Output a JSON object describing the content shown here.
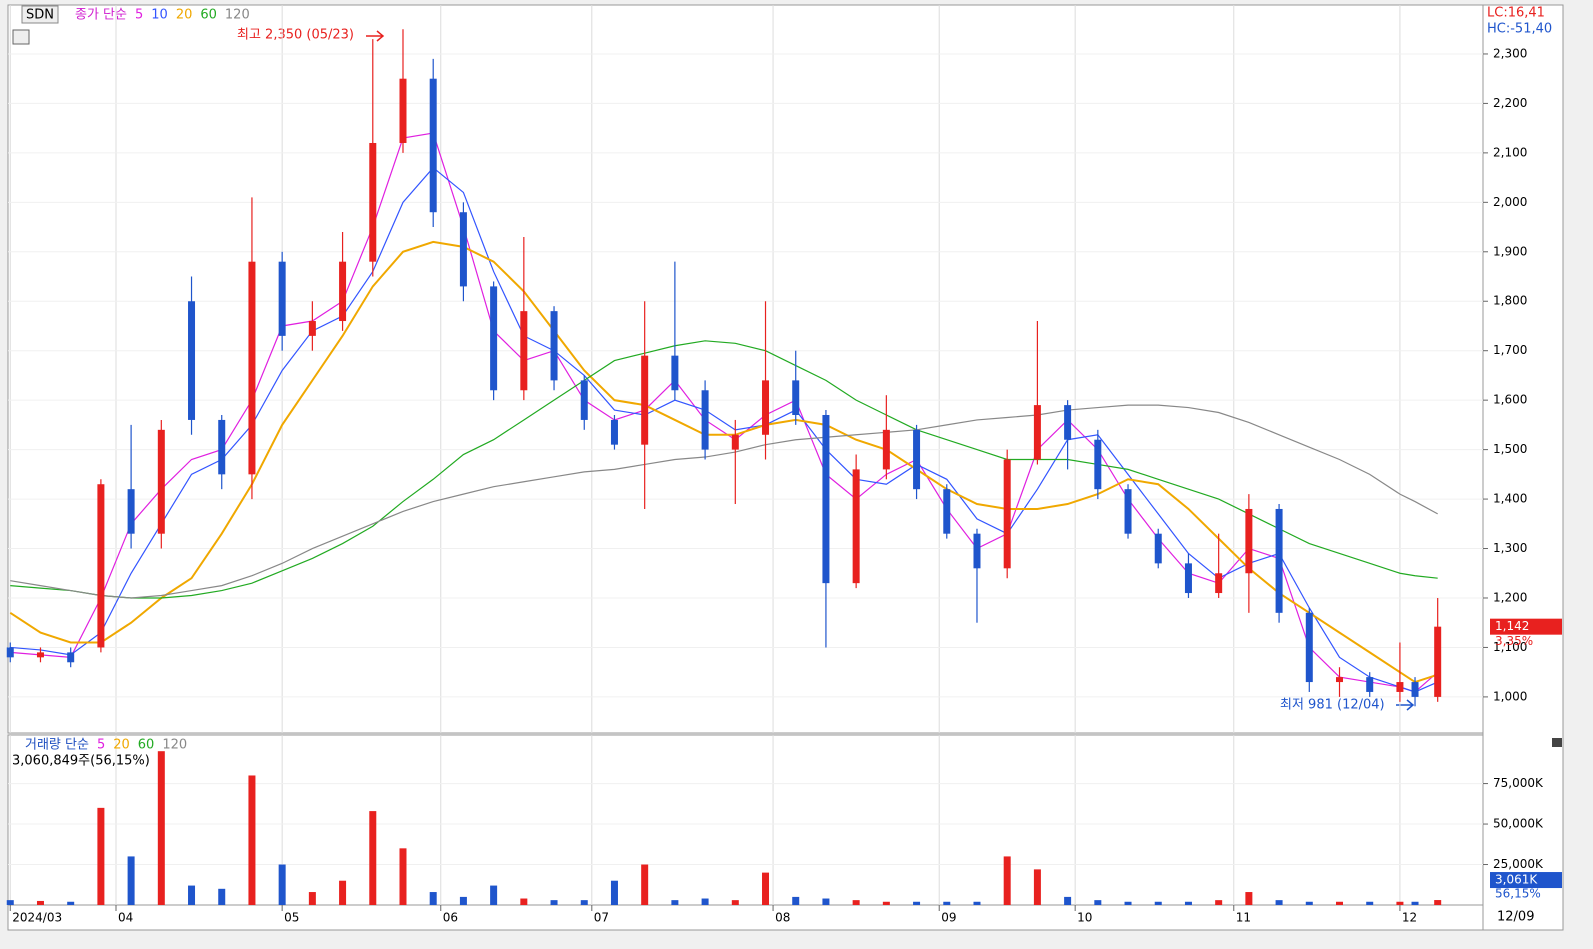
{
  "header": {
    "symbol": "SDN",
    "price_legend": "종가 단순",
    "volume_legend": "거래량 단순",
    "lc": "LC:16,41",
    "hc": "HC:-51,40",
    "x_end_label": "12/09",
    "high_note": "최고 2,350 (05/23)",
    "low_note": "최저 981 (12/04)",
    "last_change": "3,35%",
    "volume_total": "3,060,849주(56,15%)",
    "volume_ratio": "56,15%"
  },
  "chart_data": [
    {
      "type": "candlestick",
      "up_color": "#e8211f",
      "down_color": "#1f55cc",
      "grid": true,
      "x": [
        0,
        4,
        8,
        12,
        16,
        20,
        24,
        28,
        32,
        36,
        40,
        44,
        48,
        52,
        56,
        60,
        64,
        68,
        72,
        76,
        80,
        84,
        88,
        92,
        96,
        100,
        104,
        108,
        112,
        116,
        120,
        124,
        128,
        132,
        136,
        140,
        144,
        148,
        152,
        156,
        160,
        164,
        168,
        172,
        176,
        180,
        184,
        186,
        189
      ],
      "open": [
        1100,
        1080,
        1090,
        1100,
        1420,
        1330,
        1800,
        1560,
        1450,
        1880,
        1730,
        1760,
        1880,
        2120,
        2250,
        1980,
        1830,
        1620,
        1780,
        1640,
        1560,
        1510,
        1690,
        1620,
        1500,
        1530,
        1640,
        1570,
        1230,
        1460,
        1540,
        1420,
        1330,
        1260,
        1480,
        1590,
        1520,
        1420,
        1330,
        1270,
        1210,
        1250,
        1380,
        1170,
        1030,
        1040,
        1010,
        1030,
        1000
      ],
      "high": [
        1110,
        1100,
        1100,
        1440,
        1550,
        1560,
        1850,
        1570,
        2010,
        1900,
        1800,
        1940,
        2330,
        2350,
        2290,
        2000,
        1840,
        1930,
        1790,
        1650,
        1570,
        1800,
        1880,
        1640,
        1560,
        1800,
        1700,
        1580,
        1490,
        1610,
        1550,
        1430,
        1340,
        1500,
        1760,
        1600,
        1540,
        1430,
        1340,
        1290,
        1330,
        1410,
        1390,
        1180,
        1060,
        1050,
        1110,
        1040,
        1200
      ],
      "low": [
        1070,
        1070,
        1060,
        1090,
        1300,
        1300,
        1530,
        1420,
        1400,
        1700,
        1700,
        1740,
        1850,
        2100,
        1950,
        1800,
        1600,
        1600,
        1620,
        1540,
        1500,
        1380,
        1600,
        1480,
        1390,
        1480,
        1550,
        1100,
        1220,
        1440,
        1400,
        1320,
        1150,
        1240,
        1470,
        1460,
        1400,
        1320,
        1260,
        1200,
        1200,
        1170,
        1150,
        1010,
        1000,
        1000,
        990,
        981,
        990
      ],
      "close": [
        1080,
        1090,
        1070,
        1430,
        1330,
        1540,
        1560,
        1450,
        1880,
        1730,
        1760,
        1880,
        2120,
        2250,
        1980,
        1830,
        1620,
        1780,
        1640,
        1560,
        1510,
        1690,
        1620,
        1500,
        1530,
        1640,
        1570,
        1230,
        1460,
        1540,
        1420,
        1330,
        1260,
        1480,
        1590,
        1520,
        1420,
        1330,
        1270,
        1210,
        1250,
        1380,
        1170,
        1030,
        1040,
        1010,
        1030,
        1000,
        1142
      ],
      "series": [
        {
          "name": "5",
          "color": "#e020e0",
          "values": [
            1090,
            1085,
            1080,
            1200,
            1350,
            1420,
            1480,
            1500,
            1600,
            1750,
            1760,
            1800,
            1950,
            2130,
            2140,
            1950,
            1740,
            1680,
            1700,
            1600,
            1560,
            1580,
            1640,
            1560,
            1520,
            1570,
            1600,
            1450,
            1400,
            1450,
            1480,
            1380,
            1300,
            1330,
            1500,
            1560,
            1500,
            1400,
            1320,
            1250,
            1230,
            1300,
            1280,
            1100,
            1040,
            1030,
            1020,
            1010,
            1050
          ]
        },
        {
          "name": "10",
          "color": "#3355ff",
          "values": [
            1100,
            1095,
            1085,
            1130,
            1250,
            1350,
            1450,
            1480,
            1550,
            1660,
            1740,
            1770,
            1860,
            2000,
            2070,
            2020,
            1860,
            1730,
            1700,
            1650,
            1580,
            1570,
            1600,
            1580,
            1540,
            1550,
            1580,
            1500,
            1440,
            1430,
            1470,
            1440,
            1360,
            1330,
            1420,
            1520,
            1530,
            1450,
            1370,
            1290,
            1240,
            1270,
            1290,
            1180,
            1080,
            1040,
            1020,
            1010,
            1030
          ]
        },
        {
          "name": "20",
          "color": "#f0a800",
          "values": [
            1170,
            1130,
            1110,
            1110,
            1150,
            1200,
            1240,
            1330,
            1430,
            1550,
            1640,
            1730,
            1830,
            1900,
            1920,
            1910,
            1880,
            1820,
            1740,
            1660,
            1600,
            1590,
            1560,
            1530,
            1530,
            1550,
            1560,
            1550,
            1520,
            1500,
            1460,
            1420,
            1390,
            1380,
            1380,
            1390,
            1410,
            1440,
            1430,
            1380,
            1320,
            1260,
            1210,
            1170,
            1130,
            1090,
            1050,
            1030,
            1045
          ]
        },
        {
          "name": "60",
          "color": "#22aa22",
          "values": [
            1225,
            1220,
            1215,
            1205,
            1200,
            1200,
            1205,
            1215,
            1230,
            1255,
            1280,
            1310,
            1345,
            1395,
            1440,
            1490,
            1520,
            1560,
            1600,
            1640,
            1680,
            1695,
            1710,
            1720,
            1715,
            1700,
            1670,
            1640,
            1600,
            1570,
            1540,
            1520,
            1500,
            1480,
            1480,
            1480,
            1470,
            1460,
            1440,
            1420,
            1400,
            1370,
            1340,
            1310,
            1290,
            1270,
            1250,
            1245,
            1240
          ]
        },
        {
          "name": "120",
          "color": "#888888",
          "values": [
            1235,
            1225,
            1215,
            1205,
            1200,
            1205,
            1215,
            1225,
            1245,
            1270,
            1300,
            1325,
            1350,
            1375,
            1395,
            1410,
            1425,
            1435,
            1445,
            1455,
            1460,
            1470,
            1480,
            1485,
            1495,
            1510,
            1520,
            1525,
            1530,
            1535,
            1540,
            1550,
            1560,
            1565,
            1570,
            1580,
            1585,
            1590,
            1590,
            1585,
            1575,
            1555,
            1530,
            1505,
            1480,
            1450,
            1410,
            1395,
            1370
          ]
        }
      ],
      "last_price": {
        "value": 1142,
        "label": "1,142"
      },
      "xlim": [
        -0.3,
        195
      ],
      "xticks": [
        {
          "value": 0,
          "label": "2024/03"
        },
        {
          "value": 14,
          "label": "04"
        },
        {
          "value": 36,
          "label": "05"
        },
        {
          "value": 57,
          "label": "06"
        },
        {
          "value": 77,
          "label": "07"
        },
        {
          "value": 101,
          "label": "08"
        },
        {
          "value": 123,
          "label": "09"
        },
        {
          "value": 141,
          "label": "10"
        },
        {
          "value": 162,
          "label": "11"
        },
        {
          "value": 184,
          "label": "12"
        }
      ],
      "ylim": [
        927,
        2399
      ],
      "yticks": [
        {
          "value": 1000,
          "label": "1,000"
        },
        {
          "value": 1100,
          "label": "1,100"
        },
        {
          "value": 1200,
          "label": "1,200"
        },
        {
          "value": 1300,
          "label": "1,300"
        },
        {
          "value": 1400,
          "label": "1,400"
        },
        {
          "value": 1500,
          "label": "1,500"
        },
        {
          "value": 1600,
          "label": "1,600"
        },
        {
          "value": 1700,
          "label": "1,700"
        },
        {
          "value": 1800,
          "label": "1,800"
        },
        {
          "value": 1900,
          "label": "1,900"
        },
        {
          "value": 2000,
          "label": "2,000"
        },
        {
          "value": 2100,
          "label": "2,100"
        },
        {
          "value": 2200,
          "label": "2,200"
        },
        {
          "value": 2300,
          "label": "2,300"
        }
      ]
    },
    {
      "type": "bar",
      "name": "거래량",
      "x": [
        0,
        4,
        8,
        12,
        16,
        20,
        24,
        28,
        32,
        36,
        40,
        44,
        48,
        52,
        56,
        60,
        64,
        68,
        72,
        76,
        80,
        84,
        88,
        92,
        96,
        100,
        104,
        108,
        112,
        116,
        120,
        124,
        128,
        132,
        136,
        140,
        144,
        148,
        152,
        156,
        160,
        164,
        168,
        172,
        176,
        180,
        184,
        186,
        189
      ],
      "values": [
        3000,
        2500,
        2000,
        60000,
        30000,
        95000,
        12000,
        10000,
        80000,
        25000,
        8000,
        15000,
        58000,
        35000,
        8000,
        5000,
        12000,
        4000,
        3000,
        3000,
        15000,
        25000,
        3000,
        4000,
        3000,
        20000,
        5000,
        4000,
        3000,
        2000,
        2000,
        2000,
        2000,
        30000,
        22000,
        5000,
        3000,
        2000,
        2000,
        2000,
        3000,
        8000,
        3000,
        2000,
        2000,
        2000,
        2000,
        2000,
        3061
      ],
      "value_labels": [
        null,
        null,
        null,
        null,
        null,
        null,
        null,
        null,
        null,
        null,
        null,
        null,
        null,
        null,
        null,
        null,
        null,
        null,
        null,
        null,
        null,
        null,
        null,
        null,
        null,
        null,
        null,
        null,
        null,
        null,
        null,
        null,
        null,
        null,
        null,
        null,
        null,
        null,
        null,
        null,
        null,
        null,
        null,
        null,
        null,
        null,
        null,
        null,
        "3,061K"
      ],
      "ma_legend": [
        {
          "name": "5",
          "color": "#e020e0"
        },
        {
          "name": "20",
          "color": "#f0a800"
        },
        {
          "name": "60",
          "color": "#22aa22"
        },
        {
          "name": "120",
          "color": "#888888"
        }
      ],
      "ylim": [
        0,
        105000
      ],
      "yticks": [
        {
          "value": 25000,
          "label": "25,000K"
        },
        {
          "value": 50000,
          "label": "50,000K"
        },
        {
          "value": 75000,
          "label": "75,000K"
        }
      ]
    }
  ]
}
